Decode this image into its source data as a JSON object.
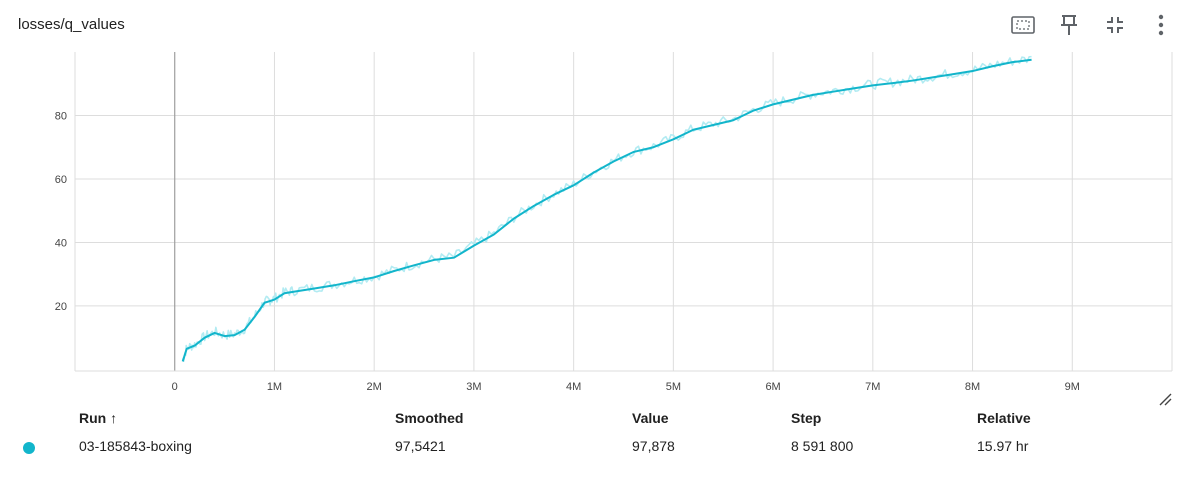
{
  "header": {
    "title": "losses/q_values",
    "icons": [
      "fit-domain-icon",
      "pin-icon",
      "collapse-icon",
      "more-vert-icon"
    ]
  },
  "colors": {
    "series": "#12b5cb",
    "raw": "#b2ebf2",
    "grid": "#dddddd",
    "axis_text": "#444444"
  },
  "chart_data": {
    "type": "line",
    "title": "losses/q_values",
    "xlabel": "",
    "ylabel": "",
    "xlim": [
      -1000000,
      10000000
    ],
    "ylim": [
      -0.5,
      100
    ],
    "x_ticks": [
      0,
      1000000,
      2000000,
      3000000,
      4000000,
      5000000,
      6000000,
      7000000,
      8000000,
      9000000
    ],
    "x_tick_labels": [
      "0",
      "1M",
      "2M",
      "3M",
      "4M",
      "5M",
      "6M",
      "7M",
      "8M",
      "9M"
    ],
    "y_ticks": [
      20,
      40,
      60,
      80
    ],
    "y_tick_labels": [
      "20",
      "40",
      "60",
      "80"
    ],
    "grid": true,
    "series": [
      {
        "name": "03-185843-boxing",
        "x": [
          80000,
          120000,
          200000,
          300000,
          400000,
          500000,
          600000,
          700000,
          800000,
          900000,
          950000,
          1000000,
          1100000,
          1200000,
          1400000,
          1600000,
          1800000,
          2000000,
          2200000,
          2400000,
          2600000,
          2800000,
          3000000,
          3200000,
          3400000,
          3600000,
          3800000,
          4000000,
          4200000,
          4400000,
          4600000,
          4800000,
          5000000,
          5200000,
          5400000,
          5600000,
          5800000,
          6000000,
          6200000,
          6400000,
          6600000,
          6800000,
          7000000,
          7200000,
          7400000,
          7600000,
          7800000,
          8000000,
          8200000,
          8400000,
          8591800
        ],
        "smoothed": [
          2.5,
          6.5,
          7.5,
          10.0,
          11.5,
          10.5,
          10.8,
          12.5,
          16.5,
          21.0,
          21.5,
          22.0,
          24.0,
          24.5,
          25.5,
          26.5,
          27.8,
          29.0,
          31.0,
          32.8,
          34.5,
          35.2,
          39.0,
          42.5,
          47.5,
          51.5,
          55.0,
          58.0,
          62.0,
          65.5,
          68.5,
          70.0,
          72.5,
          75.5,
          77.0,
          78.5,
          81.5,
          83.5,
          85.0,
          86.5,
          87.5,
          88.5,
          89.5,
          90.2,
          91.0,
          92.0,
          93.0,
          94.0,
          95.5,
          96.8,
          97.5421
        ]
      }
    ]
  },
  "table": {
    "headers": {
      "run": "Run ↑",
      "smoothed": "Smoothed",
      "value": "Value",
      "step": "Step",
      "relative": "Relative"
    },
    "rows": [
      {
        "run": "03-185843-boxing",
        "smoothed": "97,5421",
        "value": "97,878",
        "step": "8 591 800",
        "relative": "15.97 hr"
      }
    ]
  }
}
